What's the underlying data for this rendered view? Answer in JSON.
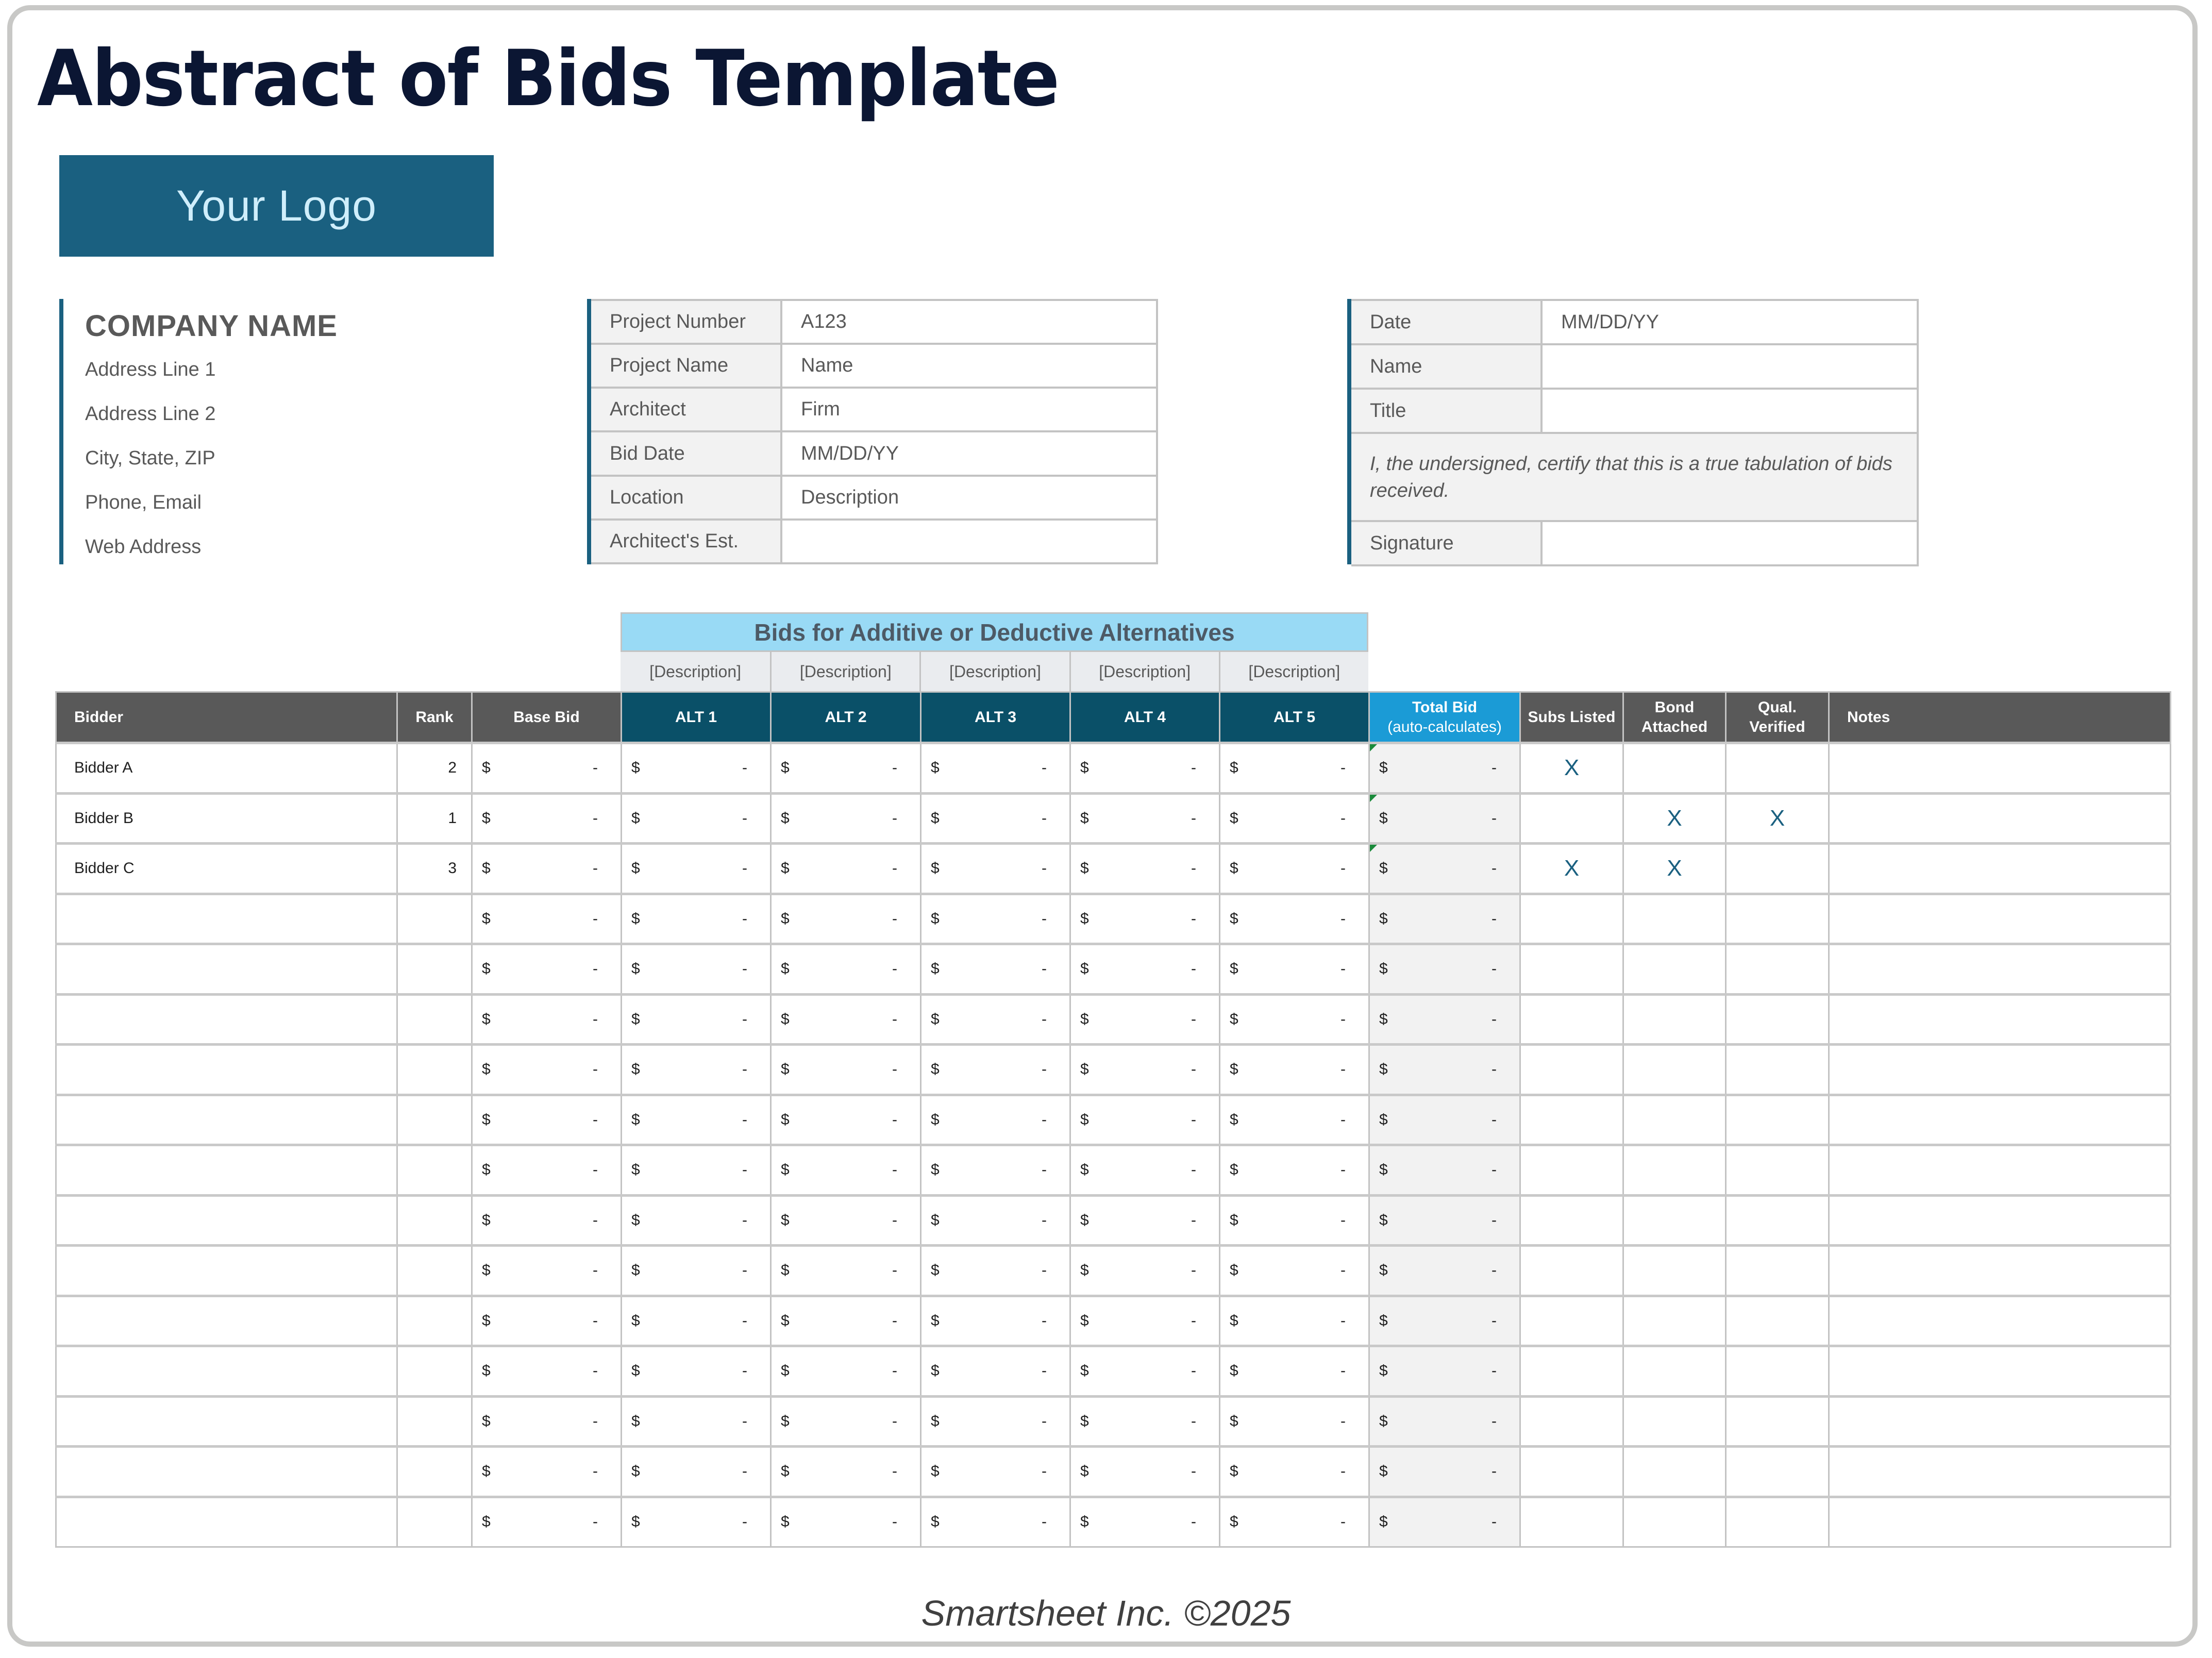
{
  "title": "Abstract of Bids Template",
  "logo": {
    "text": "Your Logo",
    "color": "#1a6080"
  },
  "company": {
    "name": "COMPANY NAME",
    "lines": [
      "Address Line 1",
      "Address Line 2",
      "City, State, ZIP",
      "Phone, Email",
      "Web Address"
    ]
  },
  "project_info": [
    {
      "label": "Project Number",
      "value": "A123"
    },
    {
      "label": "Project Name",
      "value": "Name"
    },
    {
      "label": "Architect",
      "value": "Firm"
    },
    {
      "label": "Bid Date",
      "value": "MM/DD/YY"
    },
    {
      "label": "Location",
      "value": "Description"
    },
    {
      "label": "Architect's Est.",
      "value": ""
    }
  ],
  "certification": {
    "date_label": "Date",
    "date_value": "MM/DD/YY",
    "name_label": "Name",
    "name_value": "",
    "title_label": "Title",
    "title_value": "",
    "statement": "I, the undersigned, certify that this is a true tabulation of bids received.",
    "signature_label": "Signature",
    "signature_value": ""
  },
  "alternatives": {
    "heading": "Bids for Additive or Deductive Alternatives",
    "descriptions": [
      "[Description]",
      "[Description]",
      "[Description]",
      "[Description]",
      "[Description]"
    ]
  },
  "table": {
    "headers": {
      "bidder": "Bidder",
      "rank": "Rank",
      "base_bid": "Base Bid",
      "alt1": "ALT 1",
      "alt2": "ALT 2",
      "alt3": "ALT 3",
      "alt4": "ALT 4",
      "alt5": "ALT 5",
      "total_bid": "Total Bid",
      "total_bid_sub": "(auto-calculates)",
      "subs_listed": "Subs Listed",
      "bond_attached_1": "Bond",
      "bond_attached_2": "Attached",
      "qual_verified_1": "Qual.",
      "qual_verified_2": "Verified",
      "notes": "Notes"
    },
    "currency_symbol": "$",
    "empty_amount": "-",
    "rows": [
      {
        "bidder": "Bidder A",
        "rank": "2",
        "subs": "X",
        "bond": "",
        "qual": "",
        "notes": ""
      },
      {
        "bidder": "Bidder B",
        "rank": "1",
        "subs": "",
        "bond": "X",
        "qual": "X",
        "notes": ""
      },
      {
        "bidder": "Bidder C",
        "rank": "3",
        "subs": "X",
        "bond": "X",
        "qual": "",
        "notes": ""
      },
      {
        "bidder": "",
        "rank": "",
        "subs": "",
        "bond": "",
        "qual": "",
        "notes": ""
      },
      {
        "bidder": "",
        "rank": "",
        "subs": "",
        "bond": "",
        "qual": "",
        "notes": ""
      },
      {
        "bidder": "",
        "rank": "",
        "subs": "",
        "bond": "",
        "qual": "",
        "notes": ""
      },
      {
        "bidder": "",
        "rank": "",
        "subs": "",
        "bond": "",
        "qual": "",
        "notes": ""
      },
      {
        "bidder": "",
        "rank": "",
        "subs": "",
        "bond": "",
        "qual": "",
        "notes": ""
      },
      {
        "bidder": "",
        "rank": "",
        "subs": "",
        "bond": "",
        "qual": "",
        "notes": ""
      },
      {
        "bidder": "",
        "rank": "",
        "subs": "",
        "bond": "",
        "qual": "",
        "notes": ""
      },
      {
        "bidder": "",
        "rank": "",
        "subs": "",
        "bond": "",
        "qual": "",
        "notes": ""
      },
      {
        "bidder": "",
        "rank": "",
        "subs": "",
        "bond": "",
        "qual": "",
        "notes": ""
      },
      {
        "bidder": "",
        "rank": "",
        "subs": "",
        "bond": "",
        "qual": "",
        "notes": ""
      },
      {
        "bidder": "",
        "rank": "",
        "subs": "",
        "bond": "",
        "qual": "",
        "notes": ""
      },
      {
        "bidder": "",
        "rank": "",
        "subs": "",
        "bond": "",
        "qual": "",
        "notes": ""
      },
      {
        "bidder": "",
        "rank": "",
        "subs": "",
        "bond": "",
        "qual": "",
        "notes": ""
      }
    ]
  },
  "colors": {
    "title": "#0b1633",
    "brand_blue": "#1a6080",
    "alt_header": "#0a5068",
    "total_header": "#1b9bd6",
    "gray_header": "#595959",
    "alt_banner": "#99daf5",
    "mark": "#1a6080",
    "formula_flag": "#1a8a3a"
  },
  "footer": "Smartsheet Inc. ©2025"
}
